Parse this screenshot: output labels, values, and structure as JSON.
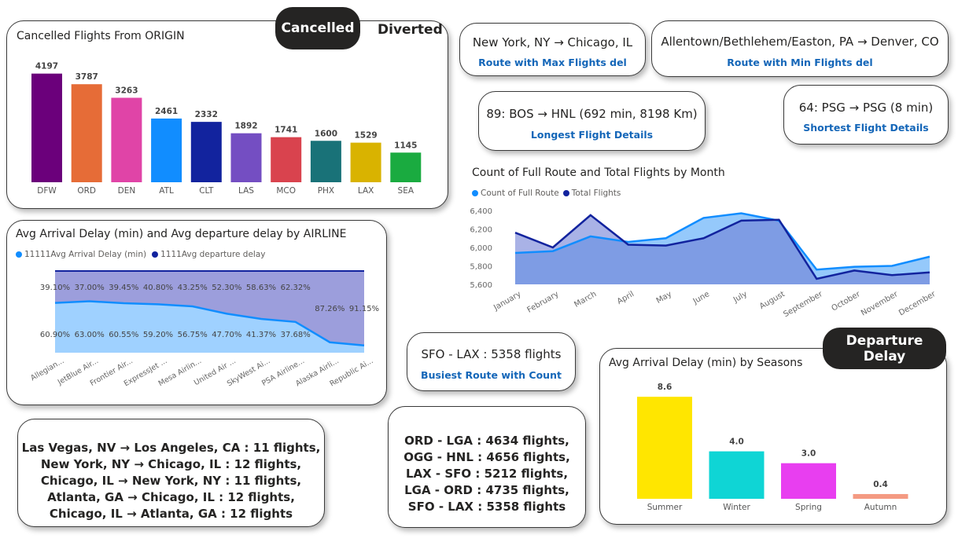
{
  "tabs": {
    "cancelled": "Cancelled",
    "diverted": "Diverted",
    "departure_delay": "Departure Delay"
  },
  "kpis": {
    "max_route": {
      "value": "New York, NY → Chicago, IL",
      "label": "Route with Max Flights del"
    },
    "min_route": {
      "value": "Allentown/Bethlehem/Easton, PA → Denver, CO",
      "label": "Route with Min Flights del"
    },
    "longest": {
      "value": "89: BOS → HNL (692 min, 8198 Km)",
      "label": "Longest Flight Details"
    },
    "shortest": {
      "value": "64: PSG → PSG (8 min)",
      "label": "Shortest Flight Details"
    },
    "busiest": {
      "value": "SFO - LAX : 5358 flights",
      "label": "Busiest Route with Count"
    }
  },
  "route_list_left": [
    "Las Vegas, NV → Los Angeles, CA : 11 flights,",
    "New York, NY → Chicago, IL : 12 flights,",
    "Chicago, IL → New York, NY : 11 flights,",
    "Atlanta, GA → Chicago, IL : 12 flights,",
    "Chicago, IL → Atlanta, GA : 12 flights"
  ],
  "route_list_mid": [
    "ORD - LGA : 4634 flights,",
    "OGG - HNL : 4656 flights,",
    "LAX - SFO : 5212 flights,",
    "LGA - ORD : 4735 flights,",
    "SFO - LAX : 5358 flights"
  ],
  "chart_data": [
    {
      "type": "bar",
      "title": "Cancelled Flights From ORIGIN",
      "categories": [
        "DFW",
        "ORD",
        "DEN",
        "ATL",
        "CLT",
        "LAS",
        "MCO",
        "PHX",
        "LAX",
        "SEA"
      ],
      "values": [
        4197,
        3787,
        3263,
        2461,
        2332,
        1892,
        1741,
        1600,
        1529,
        1145
      ],
      "colors": [
        "#6b007b",
        "#e66c37",
        "#e044a7",
        "#118dff",
        "#12239e",
        "#744ec2",
        "#d9434e",
        "#197278",
        "#d9b300",
        "#1aab40"
      ],
      "ylim": [
        0,
        4400
      ]
    },
    {
      "type": "area",
      "title": "Avg Arrival Delay (min) and Avg departure delay by AIRLINE",
      "categories": [
        "Allegian...",
        "JetBlue Air...",
        "Frontier Air...",
        "ExpressJet ...",
        "Mesa Airlin...",
        "United Air ...",
        "SkyWest Ai...",
        "PSA Airline...",
        "Alaska Airli...",
        "Republic Ai..."
      ],
      "series": [
        {
          "name": "11111Avg Arrival Delay (min)",
          "color": "#118dff",
          "values": [
            60.9,
            63.0,
            60.55,
            59.2,
            56.75,
            47.7,
            41.37,
            37.68,
            12.74,
            8.85
          ],
          "labels": [
            "60.90%",
            "63.00%",
            "60.55%",
            "59.20%",
            "56.75%",
            "47.70%",
            "41.37%",
            "37.68%",
            "",
            ""
          ]
        },
        {
          "name": "1111Avg departure delay",
          "color": "#12239e",
          "values": [
            39.1,
            37.0,
            39.45,
            40.8,
            43.25,
            52.3,
            58.63,
            62.32,
            87.26,
            91.15
          ],
          "labels": [
            "39.10%",
            "37.00%",
            "39.45%",
            "40.80%",
            "43.25%",
            "52.30%",
            "58.63%",
            "62.32%",
            "87.26%",
            "91.15%"
          ]
        }
      ],
      "stacked_percent": true
    },
    {
      "type": "area",
      "title": "Count of Full Route and Total Flights by Month",
      "categories": [
        "January",
        "February",
        "March",
        "April",
        "May",
        "June",
        "July",
        "August",
        "September",
        "October",
        "November",
        "December"
      ],
      "series": [
        {
          "name": "Count of Full Route",
          "color": "#118dff",
          "values": [
            5940,
            5960,
            6120,
            6060,
            6100,
            6320,
            6370,
            6290,
            5760,
            5790,
            5800,
            5900
          ]
        },
        {
          "name": "Total Flights",
          "color": "#12239e",
          "values": [
            6160,
            6000,
            6350,
            6030,
            6020,
            6100,
            6290,
            6300,
            5660,
            5750,
            5700,
            5730
          ]
        }
      ],
      "ylim": [
        5600,
        6400
      ],
      "yticks": [
        "6,400",
        "6,200",
        "6,000",
        "5,800",
        "5,600"
      ]
    },
    {
      "type": "bar",
      "title": "Avg Arrival Delay (min) by Seasons",
      "categories": [
        "Summer",
        "Winter",
        "Spring",
        "Autumn"
      ],
      "values": [
        8.6,
        4.0,
        3.0,
        0.4
      ],
      "labels": [
        "8.6",
        "4.0",
        "3.0",
        "0.4"
      ],
      "colors": [
        "#ffe600",
        "#0fd5d5",
        "#e83ef0",
        "#f49a82"
      ],
      "ylim": [
        0,
        9.6
      ]
    }
  ]
}
